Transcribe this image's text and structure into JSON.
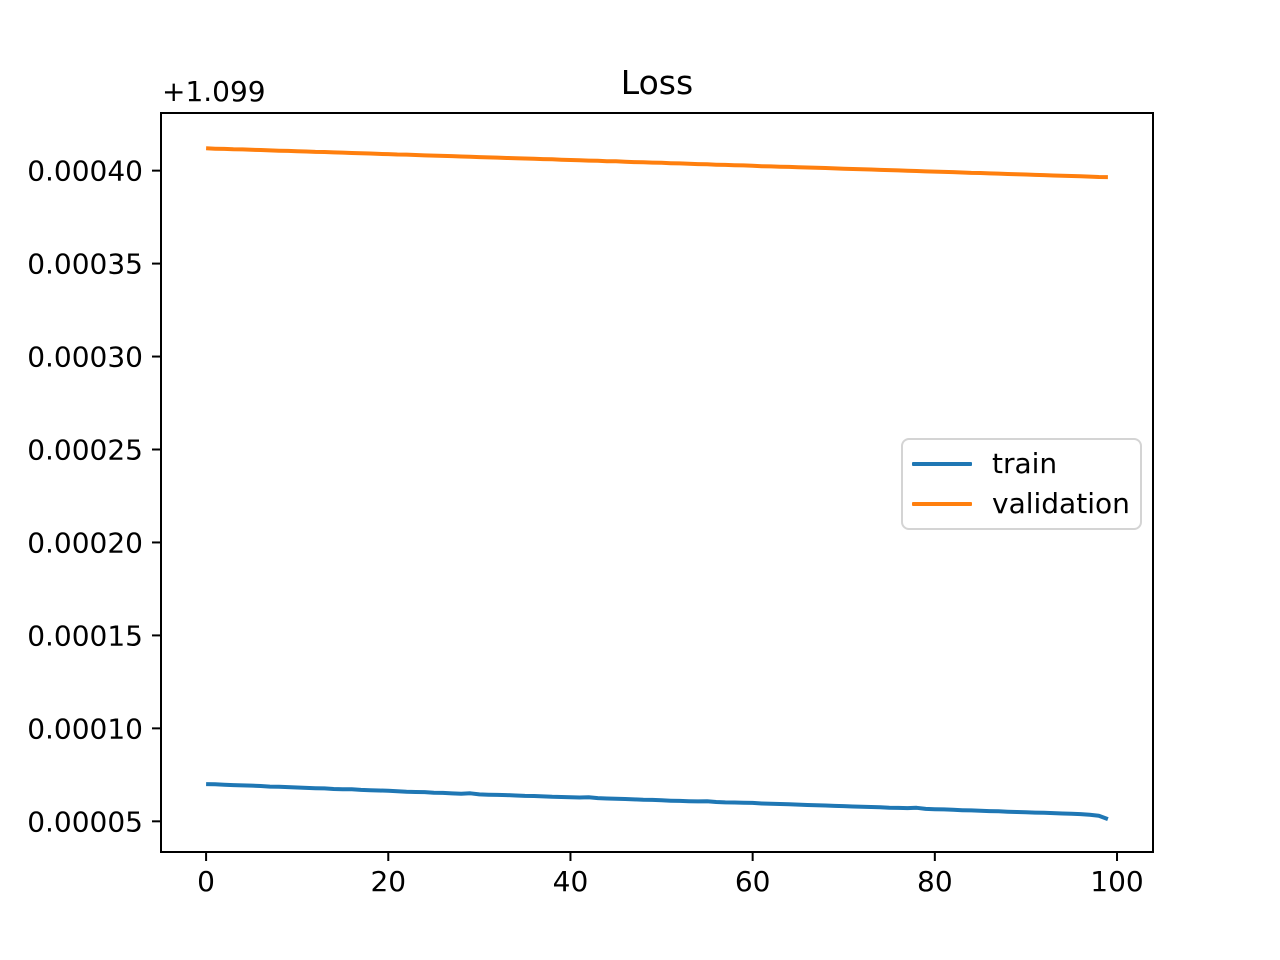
{
  "figure": {
    "background": "#ffffff"
  },
  "chart_data": {
    "type": "line",
    "title": "Loss",
    "xlabel": "",
    "ylabel": "",
    "grid": false,
    "y_offset": 1.099,
    "offset_label": "+1.099",
    "xlim": [
      -4.95,
      103.95
    ],
    "ylim": [
      3.35e-05,
      0.000431
    ],
    "x_ticks": [
      0,
      20,
      40,
      60,
      80,
      100
    ],
    "x_tick_labels": [
      "0",
      "20",
      "40",
      "60",
      "80",
      "100"
    ],
    "y_ticks": [
      5e-05,
      0.0001,
      0.00015,
      0.0002,
      0.00025,
      0.0003,
      0.00035,
      0.0004
    ],
    "y_tick_labels": [
      "0.00005",
      "0.00010",
      "0.00015",
      "0.00020",
      "0.00025",
      "0.00030",
      "0.00035",
      "0.00040"
    ],
    "legend": {
      "position": "center right",
      "entries": [
        "train",
        "validation"
      ]
    },
    "x": [
      0,
      1,
      2,
      3,
      4,
      5,
      6,
      7,
      8,
      9,
      10,
      11,
      12,
      13,
      14,
      15,
      16,
      17,
      18,
      19,
      20,
      21,
      22,
      23,
      24,
      25,
      26,
      27,
      28,
      29,
      30,
      31,
      32,
      33,
      34,
      35,
      36,
      37,
      38,
      39,
      40,
      41,
      42,
      43,
      44,
      45,
      46,
      47,
      48,
      49,
      50,
      51,
      52,
      53,
      54,
      55,
      56,
      57,
      58,
      59,
      60,
      61,
      62,
      63,
      64,
      65,
      66,
      67,
      68,
      69,
      70,
      71,
      72,
      73,
      74,
      75,
      76,
      77,
      78,
      79,
      80,
      81,
      82,
      83,
      84,
      85,
      86,
      87,
      88,
      89,
      90,
      91,
      92,
      93,
      94,
      95,
      96,
      97,
      98,
      99
    ],
    "series": [
      {
        "name": "train",
        "color": "#1f77b4",
        "values": [
          7e-05,
          6.99e-05,
          6.97e-05,
          6.95e-05,
          6.93e-05,
          6.92e-05,
          6.9e-05,
          6.87e-05,
          6.86e-05,
          6.84e-05,
          6.82e-05,
          6.8e-05,
          6.78e-05,
          6.77e-05,
          6.74e-05,
          6.73e-05,
          6.72e-05,
          6.69e-05,
          6.67e-05,
          6.66e-05,
          6.64e-05,
          6.62e-05,
          6.59e-05,
          6.58e-05,
          6.57e-05,
          6.54e-05,
          6.53e-05,
          6.5e-05,
          6.48e-05,
          6.51e-05,
          6.45e-05,
          6.43e-05,
          6.42e-05,
          6.41e-05,
          6.39e-05,
          6.37e-05,
          6.36e-05,
          6.34e-05,
          6.32e-05,
          6.31e-05,
          6.29e-05,
          6.28e-05,
          6.29e-05,
          6.25e-05,
          6.23e-05,
          6.21e-05,
          6.2e-05,
          6.18e-05,
          6.16e-05,
          6.15e-05,
          6.13e-05,
          6.11e-05,
          6.1e-05,
          6.08e-05,
          6.07e-05,
          6.08e-05,
          6.04e-05,
          6.02e-05,
          6.01e-05,
          6e-05,
          5.99e-05,
          5.96e-05,
          5.95e-05,
          5.93e-05,
          5.92e-05,
          5.9e-05,
          5.88e-05,
          5.87e-05,
          5.85e-05,
          5.83e-05,
          5.82e-05,
          5.8e-05,
          5.78e-05,
          5.77e-05,
          5.76e-05,
          5.73e-05,
          5.72e-05,
          5.71e-05,
          5.73e-05,
          5.67e-05,
          5.65e-05,
          5.64e-05,
          5.62e-05,
          5.6e-05,
          5.59e-05,
          5.57e-05,
          5.55e-05,
          5.54e-05,
          5.52e-05,
          5.5e-05,
          5.49e-05,
          5.47e-05,
          5.46e-05,
          5.44e-05,
          5.42e-05,
          5.41e-05,
          5.39e-05,
          5.35e-05,
          5.3e-05,
          5.12e-05
        ]
      },
      {
        "name": "validation",
        "color": "#ff7f0e",
        "values": [
          0.000412,
          0.0004118,
          0.0004117,
          0.0004115,
          0.0004114,
          0.0004112,
          0.0004111,
          0.0004109,
          0.0004107,
          0.0004106,
          0.0004104,
          0.0004103,
          0.0004101,
          0.00041,
          0.0004098,
          0.0004097,
          0.0004095,
          0.0004093,
          0.0004092,
          0.000409,
          0.0004089,
          0.0004087,
          0.0004086,
          0.0004084,
          0.0004082,
          0.0004081,
          0.0004079,
          0.0004078,
          0.0004076,
          0.0004075,
          0.0004073,
          0.0004071,
          0.000407,
          0.0004068,
          0.0004067,
          0.0004065,
          0.0004064,
          0.0004062,
          0.0004061,
          0.0004059,
          0.0004057,
          0.0004056,
          0.0004054,
          0.0004053,
          0.0004051,
          0.000405,
          0.0004048,
          0.0004046,
          0.0004045,
          0.0004043,
          0.0004042,
          0.000404,
          0.0004039,
          0.0004037,
          0.0004035,
          0.0004034,
          0.0004032,
          0.0004031,
          0.0004029,
          0.0004028,
          0.0004026,
          0.0004024,
          0.0004023,
          0.0004021,
          0.000402,
          0.0004018,
          0.0004017,
          0.0004015,
          0.0004014,
          0.0004012,
          0.000401,
          0.0004009,
          0.0004007,
          0.0004006,
          0.0004004,
          0.0004003,
          0.0004001,
          0.0003999,
          0.0003998,
          0.0003996,
          0.0003995,
          0.0003993,
          0.0003992,
          0.000399,
          0.0003988,
          0.0003987,
          0.0003985,
          0.0003984,
          0.0003982,
          0.0003981,
          0.0003979,
          0.0003977,
          0.0003976,
          0.0003974,
          0.0003973,
          0.0003971,
          0.000397,
          0.0003968,
          0.0003966,
          0.0003965
        ]
      }
    ]
  }
}
